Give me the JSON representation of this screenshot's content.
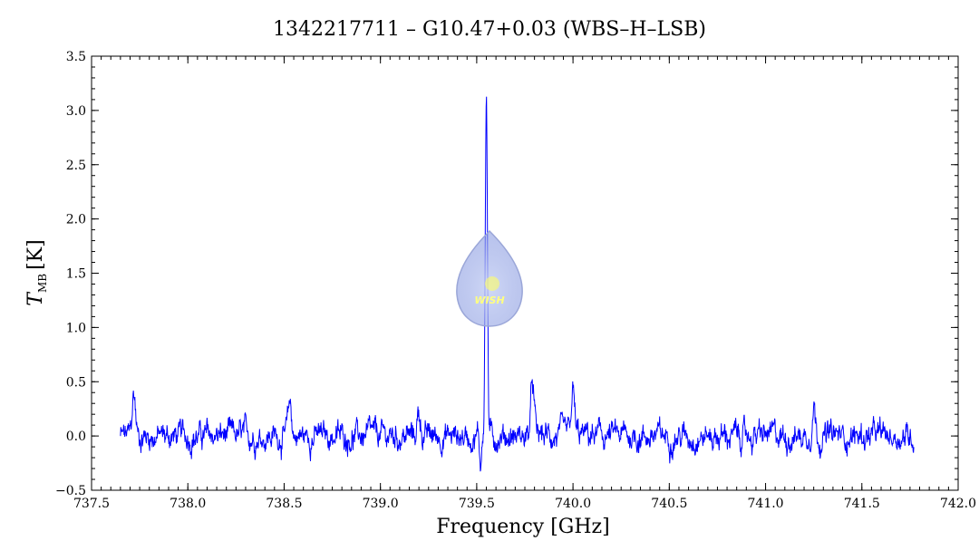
{
  "chart_data": {
    "type": "line",
    "title": "1342217711 – G10.47+0.03 (WBS–H–LSB)",
    "xlabel": "Frequency [GHz]",
    "ylabel_main": "T",
    "ylabel_sub": "MB",
    "ylabel_unit": "[K]",
    "xlim": [
      737.5,
      742.0
    ],
    "ylim": [
      -0.5,
      3.5
    ],
    "x_ticks": [
      "737.5",
      "738.0",
      "738.5",
      "739.0",
      "739.5",
      "740.0",
      "740.5",
      "741.0",
      "741.5",
      "742.0"
    ],
    "y_ticks": [
      "−0.5",
      "0.0",
      "0.5",
      "1.0",
      "1.5",
      "2.0",
      "2.5",
      "3.0",
      "3.5"
    ],
    "series": [
      {
        "color": "#0000ff",
        "x_range": [
          737.65,
          741.77
        ],
        "baseline_noise": 0.1,
        "peaks": [
          {
            "x": 739.55,
            "height": 3.1
          },
          {
            "x": 737.72,
            "height": 0.38
          },
          {
            "x": 739.79,
            "height": 0.48
          },
          {
            "x": 740.0,
            "height": 0.38
          },
          {
            "x": 741.25,
            "height": 0.3
          },
          {
            "x": 739.2,
            "height": 0.22
          },
          {
            "x": 738.53,
            "height": 0.3
          }
        ],
        "absorption": [
          {
            "x": 739.52,
            "depth": -0.27
          }
        ]
      }
    ],
    "grid": false,
    "logo_text": "WISH"
  }
}
